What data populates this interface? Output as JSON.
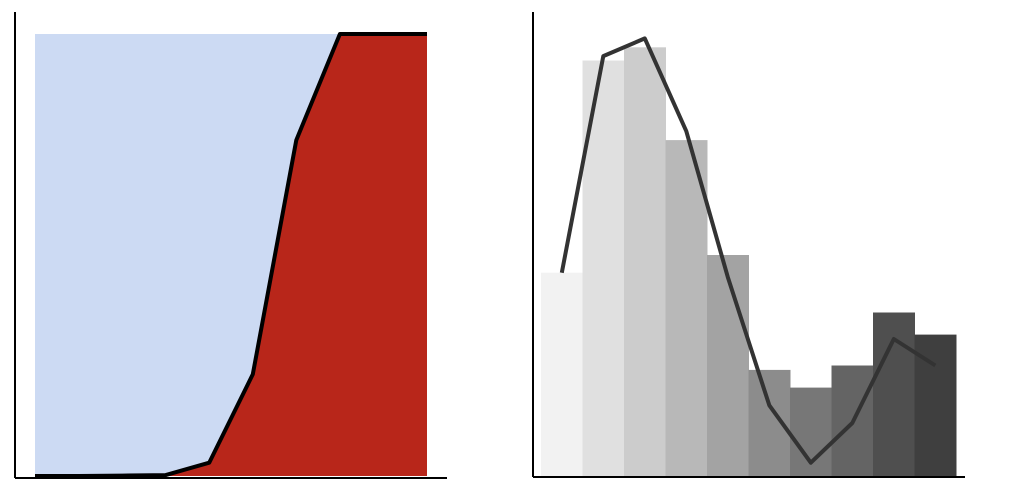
{
  "chart_data": [
    {
      "type": "area",
      "title": "",
      "xlabel": "",
      "ylabel": "",
      "grid": false,
      "legend": "none",
      "xlim": [
        0,
        9
      ],
      "ylim": [
        0,
        1
      ],
      "background_fill": "#ccdaf3",
      "area_fill": "#b8261a",
      "line_color": "#000000",
      "x": [
        0,
        1,
        2,
        3,
        4,
        5,
        6,
        7,
        8,
        9
      ],
      "values": [
        0.0,
        0.0,
        0.001,
        0.002,
        0.03,
        0.23,
        0.76,
        1.0,
        1.0,
        1.0
      ]
    },
    {
      "type": "bar",
      "title": "",
      "xlabel": "",
      "ylabel": "",
      "grid": false,
      "legend": "none",
      "ylim": [
        0,
        1
      ],
      "bar_colors": [
        "#f2f2f2",
        "#e0e0e0",
        "#cccccc",
        "#b8b8b8",
        "#a3a3a3",
        "#8c8c8c",
        "#777777",
        "#646464",
        "#4f4f4f",
        "#3f3f3f"
      ],
      "line_color": "#333333",
      "values": [
        0.46,
        0.94,
        0.97,
        0.76,
        0.5,
        0.24,
        0.2,
        0.25,
        0.37,
        0.32
      ],
      "line_values": [
        0.46,
        0.95,
        0.99,
        0.78,
        0.45,
        0.16,
        0.03,
        0.12,
        0.31,
        0.25
      ]
    }
  ]
}
